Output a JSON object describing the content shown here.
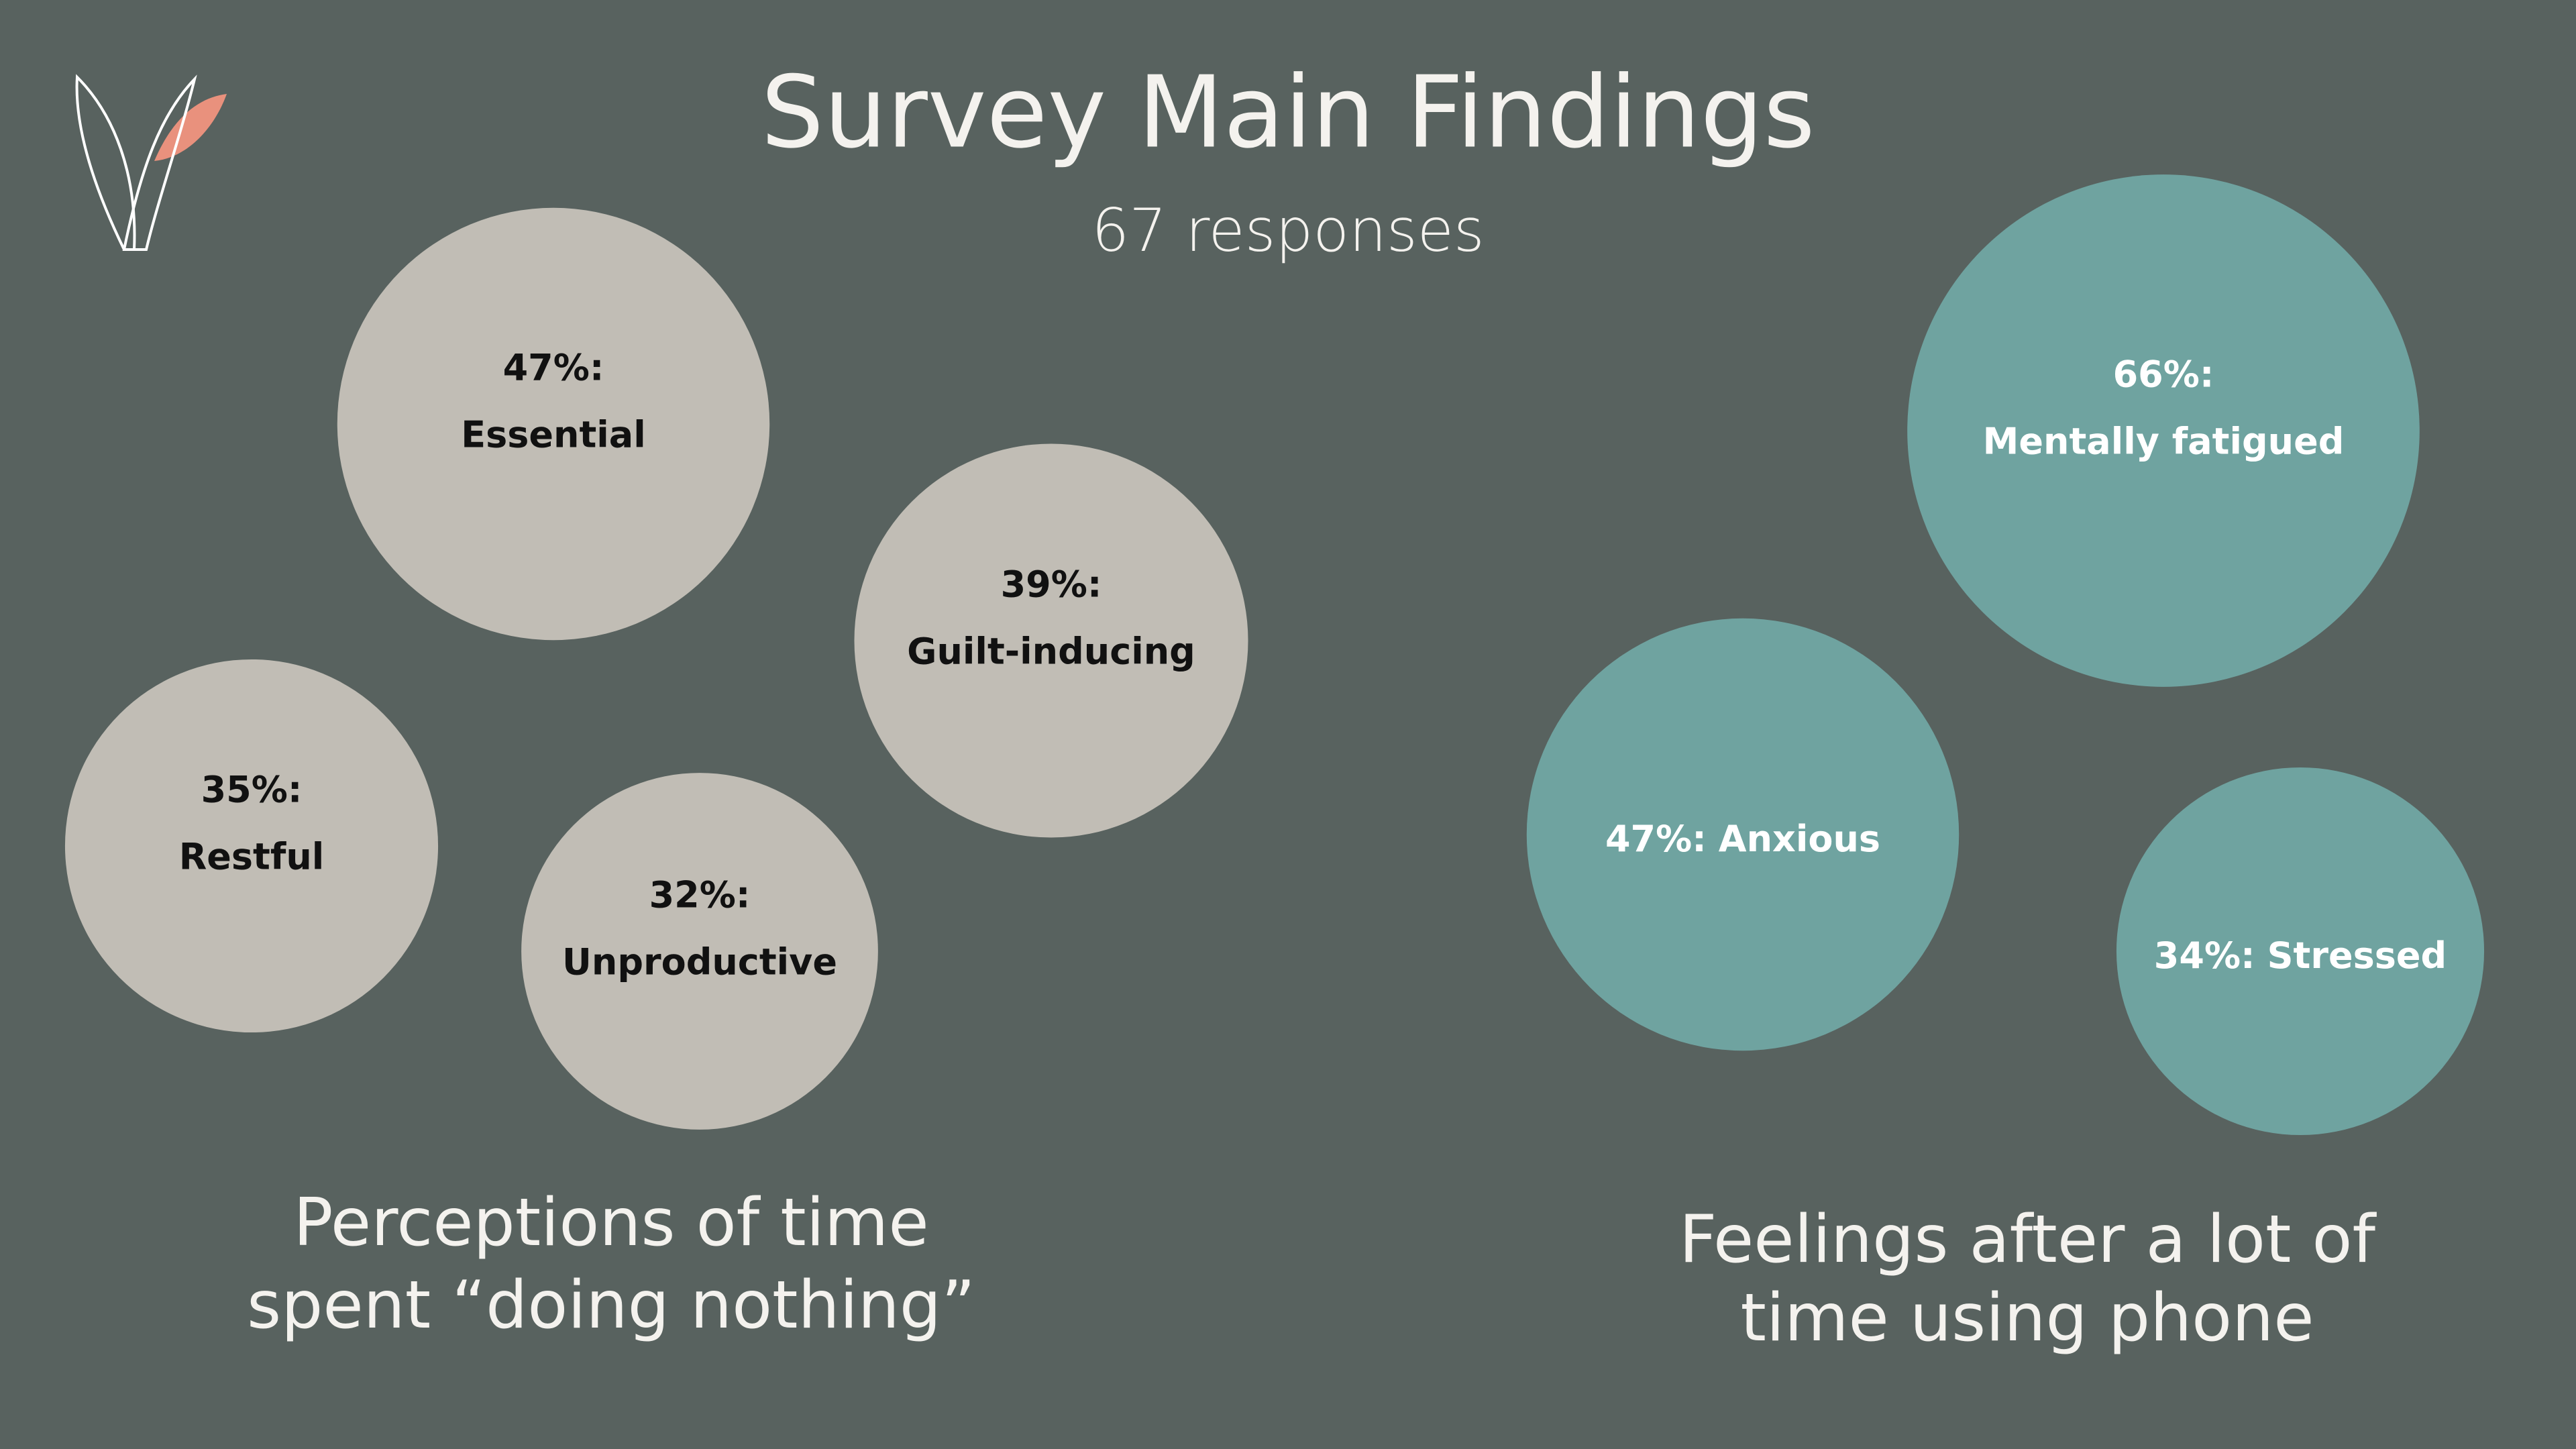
{
  "title": "Survey Main Findings",
  "subtitle": "67 responses",
  "groups": [
    {
      "caption": [
        "Perceptions of time",
        "spent “doing nothing”"
      ],
      "color": "#c1bdb5",
      "text_color": "#111111",
      "items": [
        {
          "value": 47,
          "value_label": "47%:",
          "label": "Essential"
        },
        {
          "value": 39,
          "value_label": "39%:",
          "label": "Guilt-inducing"
        },
        {
          "value": 35,
          "value_label": "35%:",
          "label": "Restful"
        },
        {
          "value": 32,
          "value_label": "32%:",
          "label": "Unproductive"
        }
      ]
    },
    {
      "caption": [
        "Feelings after a lot of",
        "time using phone"
      ],
      "color": "#6fa3a0",
      "text_color": "#ffffff",
      "items": [
        {
          "value": 66,
          "value_label": "66%:",
          "label": "Mentally fatigued"
        },
        {
          "value": 47,
          "value_label": "47%:",
          "label": "Anxious"
        },
        {
          "value": 34,
          "value_label": "34%:",
          "label": "Stressed"
        }
      ]
    }
  ]
}
